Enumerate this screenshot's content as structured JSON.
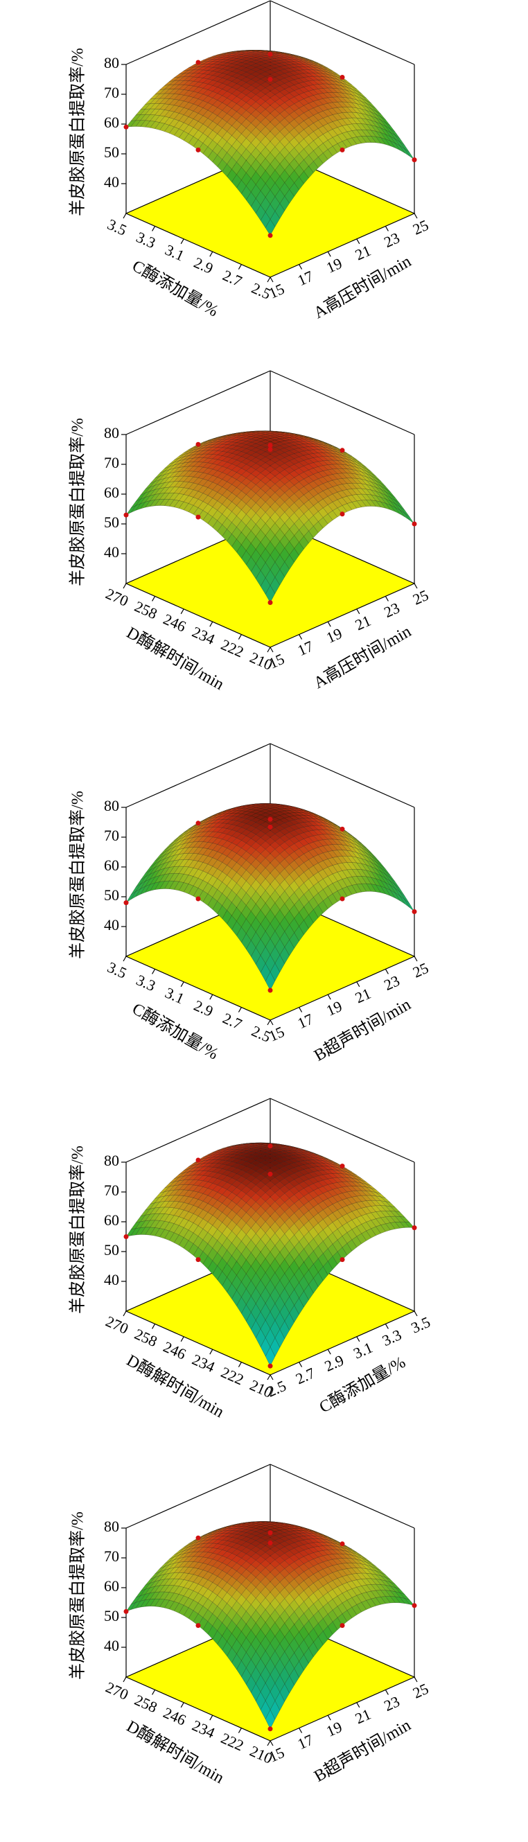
{
  "chart_data": [
    {
      "type": "surface3d",
      "zlabel": "羊皮胶原蛋白提取率/%",
      "xlabel": "A高压时间/min",
      "ylabel": "C酶添加量/%",
      "xlim": [
        15,
        25
      ],
      "ylim": [
        2.5,
        3.5
      ],
      "zlim": [
        30,
        80
      ],
      "xticks": [
        15,
        17,
        19,
        21,
        23,
        25
      ],
      "yticks": [
        2.5,
        2.7,
        2.9,
        3.1,
        3.3,
        3.5
      ],
      "zticks": [
        40,
        50,
        60,
        70,
        80
      ],
      "floor_color": "#ffff00",
      "surface": {
        "x": [
          15,
          20,
          25
        ],
        "y": [
          2.5,
          3.0,
          3.5
        ],
        "z": [
          [
            44,
            62,
            48
          ],
          [
            62,
            75,
            65
          ],
          [
            59,
            70,
            62
          ]
        ]
      }
    },
    {
      "type": "surface3d",
      "zlabel": "羊皮胶原蛋白提取率/%",
      "xlabel": "A高压时间/min",
      "ylabel": "D酶解时间/min",
      "xlim": [
        15,
        25
      ],
      "ylim": [
        210,
        270
      ],
      "zlim": [
        30,
        80
      ],
      "xticks": [
        15,
        17,
        19,
        21,
        23,
        25
      ],
      "yticks": [
        210,
        222,
        234,
        246,
        258,
        270
      ],
      "zticks": [
        40,
        50,
        60,
        70,
        80
      ],
      "floor_color": "#ffff00",
      "surface": {
        "x": [
          15,
          20,
          25
        ],
        "y": [
          210,
          240,
          270
        ],
        "z": [
          [
            45,
            64,
            50
          ],
          [
            63,
            75,
            64
          ],
          [
            53,
            66,
            55
          ]
        ]
      }
    },
    {
      "type": "surface3d",
      "zlabel": "羊皮胶原蛋白提取率/%",
      "xlabel": "B超声时间/min",
      "ylabel": "C酶添加量/%",
      "xlim": [
        15,
        25
      ],
      "ylim": [
        2.5,
        3.5
      ],
      "zlim": [
        30,
        80
      ],
      "xticks": [
        15,
        17,
        19,
        21,
        23,
        25
      ],
      "yticks": [
        2.5,
        2.7,
        2.9,
        3.1,
        3.3,
        3.5
      ],
      "zticks": [
        40,
        50,
        60,
        70,
        80
      ],
      "floor_color": "#ffff00",
      "surface": {
        "x": [
          15,
          20,
          25
        ],
        "y": [
          2.5,
          3.0,
          3.5
        ],
        "z": [
          [
            40,
            60,
            45
          ],
          [
            60,
            76,
            62
          ],
          [
            48,
            64,
            52
          ]
        ]
      }
    },
    {
      "type": "surface3d",
      "zlabel": "羊皮胶原蛋白提取率/%",
      "xlabel": "C酶添加量/%",
      "ylabel": "D酶解时间/min",
      "xlim": [
        2.5,
        3.5
      ],
      "ylim": [
        210,
        270
      ],
      "zlim": [
        30,
        80
      ],
      "xticks": [
        2.5,
        2.7,
        2.9,
        3.1,
        3.3,
        3.5
      ],
      "yticks": [
        210,
        222,
        234,
        246,
        258,
        270
      ],
      "zticks": [
        40,
        50,
        60,
        70,
        80
      ],
      "floor_color": "#ffff00",
      "surface": {
        "x": [
          2.5,
          3.0,
          3.5
        ],
        "y": [
          210,
          240,
          270
        ],
        "z": [
          [
            33,
            58,
            58
          ],
          [
            58,
            76,
            68
          ],
          [
            55,
            70,
            64
          ]
        ]
      }
    },
    {
      "type": "surface3d",
      "zlabel": "羊皮胶原蛋白提取率/%",
      "xlabel": "B超声时间/min",
      "ylabel": "D酶解时间/min",
      "xlim": [
        15,
        25
      ],
      "ylim": [
        210,
        270
      ],
      "zlim": [
        30,
        80
      ],
      "xticks": [
        15,
        17,
        19,
        21,
        23,
        25
      ],
      "yticks": [
        210,
        222,
        234,
        246,
        258,
        270
      ],
      "zticks": [
        40,
        50,
        60,
        70,
        80
      ],
      "floor_color": "#ffff00",
      "surface": {
        "x": [
          15,
          20,
          25
        ],
        "y": [
          210,
          240,
          270
        ],
        "z": [
          [
            34,
            58,
            54
          ],
          [
            58,
            75,
            64
          ],
          [
            52,
            66,
            57
          ]
        ]
      }
    }
  ]
}
